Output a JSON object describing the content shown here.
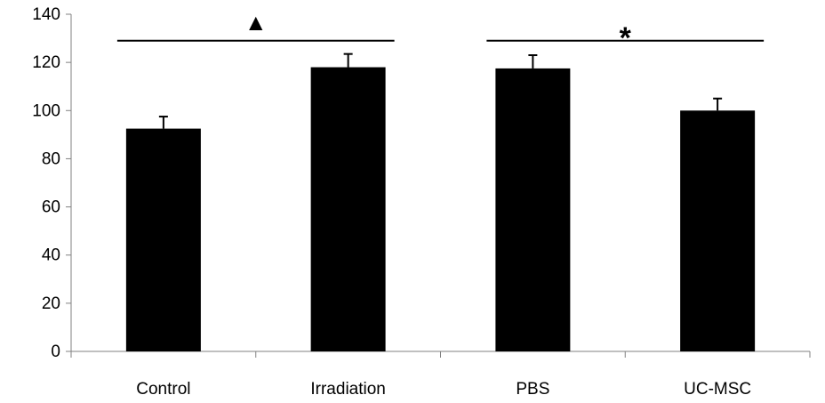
{
  "chart_data": {
    "type": "bar",
    "categories": [
      "Control",
      "Irradiation",
      "PBS",
      "UC-MSC"
    ],
    "values": [
      92.5,
      118,
      117.5,
      100
    ],
    "errors": [
      5,
      5.5,
      5.5,
      5
    ],
    "ylim": [
      0,
      140
    ],
    "yticks": [
      "0",
      "20",
      "40",
      "60",
      "80",
      "100",
      "120",
      "140"
    ],
    "title": "",
    "xlabel": "",
    "ylabel": "",
    "grid": false,
    "bar_color": "#000000",
    "significance": [
      {
        "from": "Control",
        "to": "Irradiation",
        "y": 129,
        "symbol": "▲"
      },
      {
        "from": "PBS",
        "to": "UC-MSC",
        "y": 129,
        "symbol": "*"
      }
    ]
  }
}
